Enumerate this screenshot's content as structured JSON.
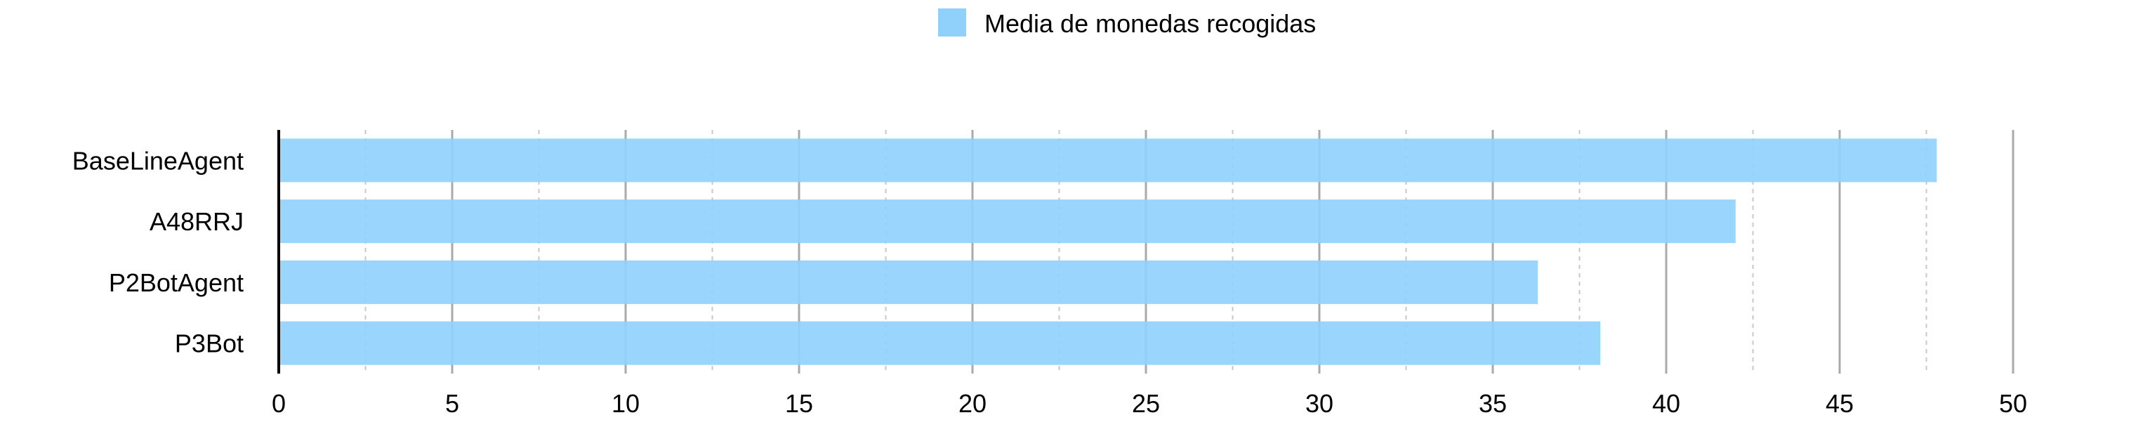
{
  "chart_data": {
    "type": "bar",
    "orientation": "horizontal",
    "categories": [
      "BaseLineAgent",
      "A48RRJ",
      "P2BotAgent",
      "P3Bot"
    ],
    "series": [
      {
        "name": "Media de monedas recogidas",
        "values": [
          47.8,
          42.0,
          36.3,
          38.1
        ]
      }
    ],
    "xlim": [
      0,
      50
    ],
    "xticks": [
      0,
      5,
      10,
      15,
      20,
      25,
      30,
      35,
      40,
      45,
      50
    ],
    "grid": {
      "major": true,
      "minor_dashed": true
    },
    "legend_position": "top-center",
    "colors": {
      "bar": "#90d1fc",
      "axis": "#000000",
      "grid_major": "#aaaaaa",
      "grid_minor": "#c8c8c8"
    }
  }
}
